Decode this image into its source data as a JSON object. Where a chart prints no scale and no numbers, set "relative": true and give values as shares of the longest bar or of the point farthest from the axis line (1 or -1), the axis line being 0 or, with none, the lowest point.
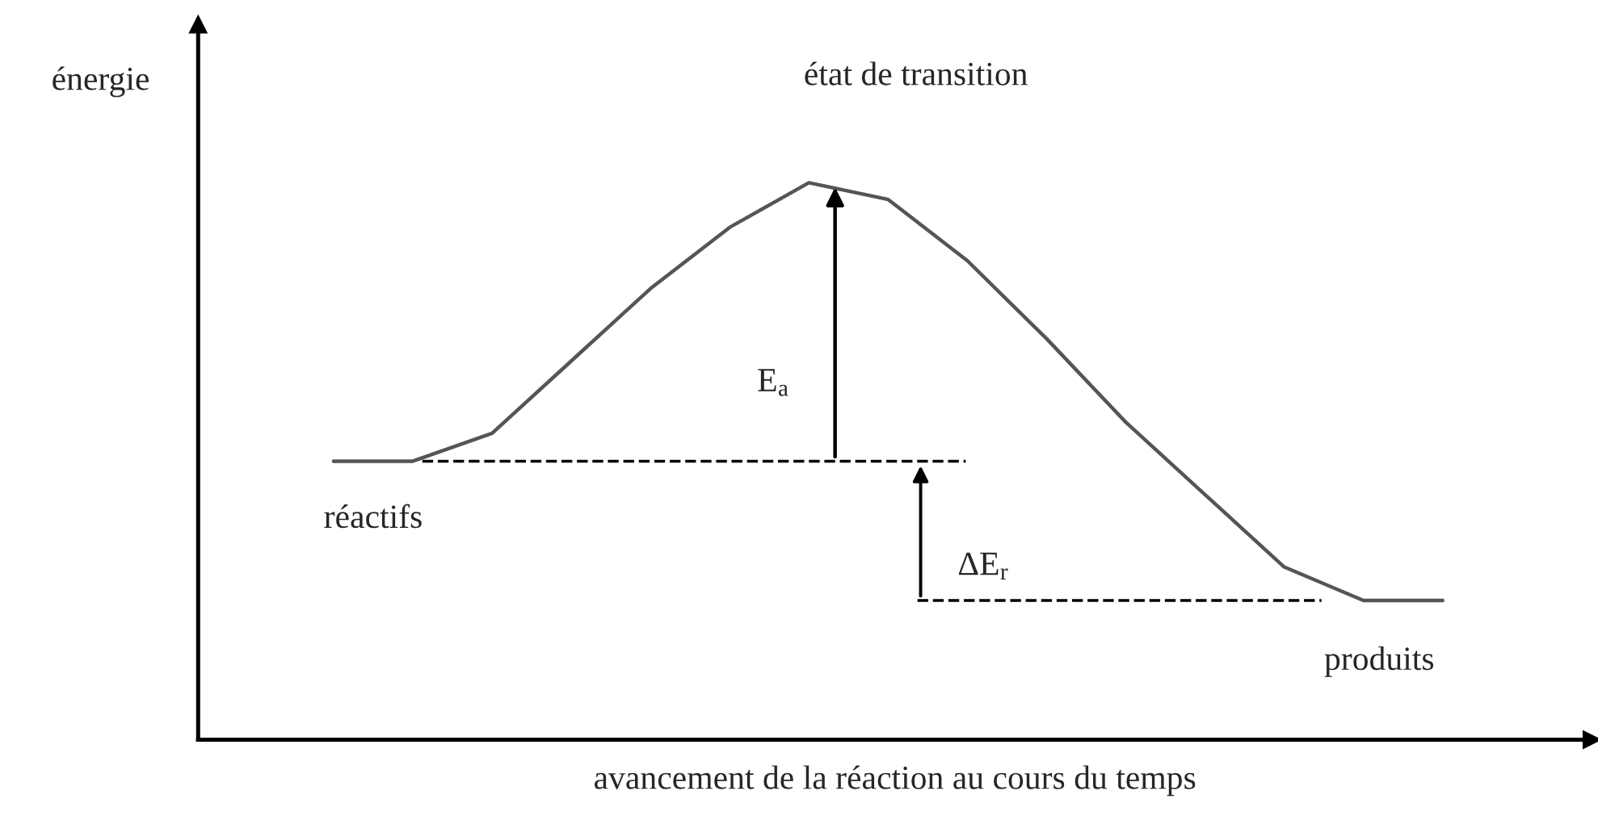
{
  "chart_data": {
    "type": "line",
    "relative": true,
    "xlabel": "avancement de la réaction au cours du temps",
    "categories": [
      null,
      null,
      null,
      null,
      null,
      null,
      null,
      null,
      null,
      null,
      null,
      null,
      null,
      null,
      null
    ],
    "series": [
      {
        "color": "#555555",
        "values": [
          0.5,
          0.5,
          0.55,
          0.68,
          0.81,
          0.92,
          1.0,
          0.97,
          0.86,
          0.72,
          0.57,
          0.44,
          0.31,
          0.25,
          0.25
        ]
      }
    ],
    "ref_lines": [
      {
        "axis": "y",
        "value": 0.5,
        "color": "#000000",
        "line_style": "dashed"
      },
      {
        "axis": "y",
        "value": 0.25,
        "color": "#000000",
        "line_style": "dashed"
      }
    ],
    "annotations": [
      "énergie",
      "état de transition",
      "réactifs",
      "produits",
      "E$_{a}$",
      "ΔE$_{r}$"
    ]
  }
}
